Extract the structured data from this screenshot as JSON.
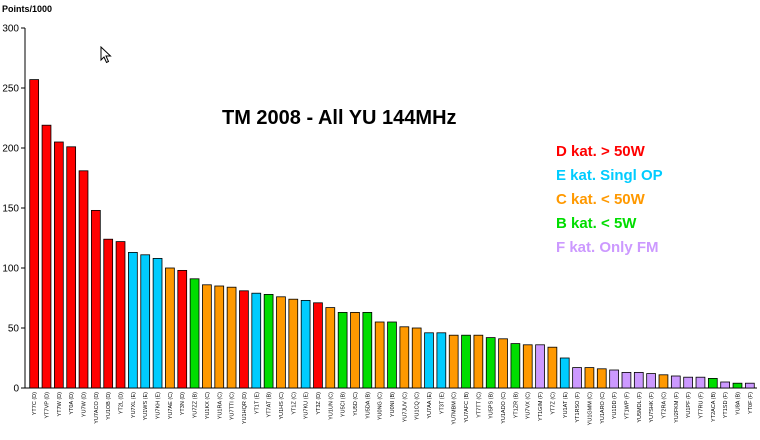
{
  "chart_data": {
    "type": "bar",
    "title": "TM 2008 - All YU 144MHz",
    "ylabel": "Points/1000",
    "xlabel": "",
    "ylim": [
      0,
      300
    ],
    "yticks": [
      0,
      50,
      100,
      150,
      200,
      250,
      300
    ],
    "grid": false,
    "legend_placement": "right",
    "category_colors": {
      "D": "#ff0000",
      "E": "#00ccff",
      "C": "#ff9900",
      "B": "#00dd00",
      "F": "#cc99ff"
    },
    "legend": [
      {
        "key": "D",
        "label": "D kat. > 50W"
      },
      {
        "key": "E",
        "label": "E kat. Singl OP"
      },
      {
        "key": "C",
        "label": "C kat. < 50W"
      },
      {
        "key": "B",
        "label": "B kat. < 5W"
      },
      {
        "key": "F",
        "label": "F kat. Only FM"
      }
    ],
    "bars": [
      {
        "label": "YT7C (D)",
        "cat": "D",
        "value": 257
      },
      {
        "label": "YT7VP (D)",
        "cat": "D",
        "value": 219
      },
      {
        "label": "YT7W (D)",
        "cat": "D",
        "value": 205
      },
      {
        "label": "YT0A (D)",
        "cat": "D",
        "value": 201
      },
      {
        "label": "YU7W (D)",
        "cat": "D",
        "value": 181
      },
      {
        "label": "YU7ACO (D)",
        "cat": "D",
        "value": 148
      },
      {
        "label": "YU1OB (D)",
        "cat": "D",
        "value": 124
      },
      {
        "label": "YT2L (D)",
        "cat": "D",
        "value": 122
      },
      {
        "label": "YU7XL (E)",
        "cat": "E",
        "value": 113
      },
      {
        "label": "YU1WS (E)",
        "cat": "E",
        "value": 111
      },
      {
        "label": "YU7KH (E)",
        "cat": "E",
        "value": 108
      },
      {
        "label": "YU7AE (C)",
        "cat": "C",
        "value": 100
      },
      {
        "label": "YT3N (D)",
        "cat": "D",
        "value": 98
      },
      {
        "label": "YU7ZZ (B)",
        "cat": "B",
        "value": 91
      },
      {
        "label": "YU1KX (C)",
        "cat": "C",
        "value": 86
      },
      {
        "label": "YU1RA (C)",
        "cat": "C",
        "value": 85
      },
      {
        "label": "YU7TTI (C)",
        "cat": "C",
        "value": 84
      },
      {
        "label": "YU1HQR (D)",
        "cat": "D",
        "value": 81
      },
      {
        "label": "YT1T (E)",
        "cat": "E",
        "value": 79
      },
      {
        "label": "YT7AT (B)",
        "cat": "B",
        "value": 78
      },
      {
        "label": "YU1HS (C)",
        "cat": "C",
        "value": 76
      },
      {
        "label": "YT1Z (C)",
        "cat": "C",
        "value": 74
      },
      {
        "label": "YU7KU (E)",
        "cat": "E",
        "value": 73
      },
      {
        "label": "YT3Z (D)",
        "cat": "D",
        "value": 71
      },
      {
        "label": "YU1UN (C)",
        "cat": "C",
        "value": 67
      },
      {
        "label": "YU5CI (B)",
        "cat": "B",
        "value": 63
      },
      {
        "label": "YU5D (C)",
        "cat": "C",
        "value": 63
      },
      {
        "label": "YU5DA (B)",
        "cat": "B",
        "value": 63
      },
      {
        "label": "YU0NG (C)",
        "cat": "C",
        "value": 55
      },
      {
        "label": "YU0NI (B)",
        "cat": "B",
        "value": 55
      },
      {
        "label": "YU7JUV (C)",
        "cat": "C",
        "value": 51
      },
      {
        "label": "YU1CQ (C)",
        "cat": "C",
        "value": 50
      },
      {
        "label": "YU7AA (E)",
        "cat": "E",
        "value": 46
      },
      {
        "label": "YT3T (E)",
        "cat": "E",
        "value": 46
      },
      {
        "label": "YU7MBM (C)",
        "cat": "C",
        "value": 44
      },
      {
        "label": "YU7AFC (B)",
        "cat": "B",
        "value": 44
      },
      {
        "label": "YT7TT (C)",
        "cat": "C",
        "value": 44
      },
      {
        "label": "YU5PS (B)",
        "cat": "B",
        "value": 42
      },
      {
        "label": "YU1ADO (C)",
        "cat": "C",
        "value": 41
      },
      {
        "label": "YT1ZR (B)",
        "cat": "B",
        "value": 37
      },
      {
        "label": "YU7VX (C)",
        "cat": "C",
        "value": 36
      },
      {
        "label": "YT1GIM (F)",
        "cat": "F",
        "value": 36
      },
      {
        "label": "YT7Z (C)",
        "cat": "C",
        "value": 34
      },
      {
        "label": "YU1AT (E)",
        "cat": "E",
        "value": 25
      },
      {
        "label": "YT1RSO (F)",
        "cat": "F",
        "value": 17
      },
      {
        "label": "YU1GMM (C)",
        "cat": "C",
        "value": 17
      },
      {
        "label": "YU1ARO (C)",
        "cat": "C",
        "value": 16
      },
      {
        "label": "YU1DD (F)",
        "cat": "F",
        "value": 15
      },
      {
        "label": "YT1WP (F)",
        "cat": "F",
        "value": 13
      },
      {
        "label": "YU5MDL (F)",
        "cat": "F",
        "value": 13
      },
      {
        "label": "YU7SHK (F)",
        "cat": "F",
        "value": 12
      },
      {
        "label": "YT2RA (C)",
        "cat": "C",
        "value": 11
      },
      {
        "label": "YU2FKM (F)",
        "cat": "F",
        "value": 10
      },
      {
        "label": "YU1PF (F)",
        "cat": "F",
        "value": 9
      },
      {
        "label": "YT7RU (F)",
        "cat": "F",
        "value": 9
      },
      {
        "label": "YT2ACA (B)",
        "cat": "B",
        "value": 8
      },
      {
        "label": "YT1SD (F)",
        "cat": "F",
        "value": 5
      },
      {
        "label": "YU8A (B)",
        "cat": "B",
        "value": 4
      },
      {
        "label": "YT0F (F)",
        "cat": "F",
        "value": 4
      }
    ]
  }
}
